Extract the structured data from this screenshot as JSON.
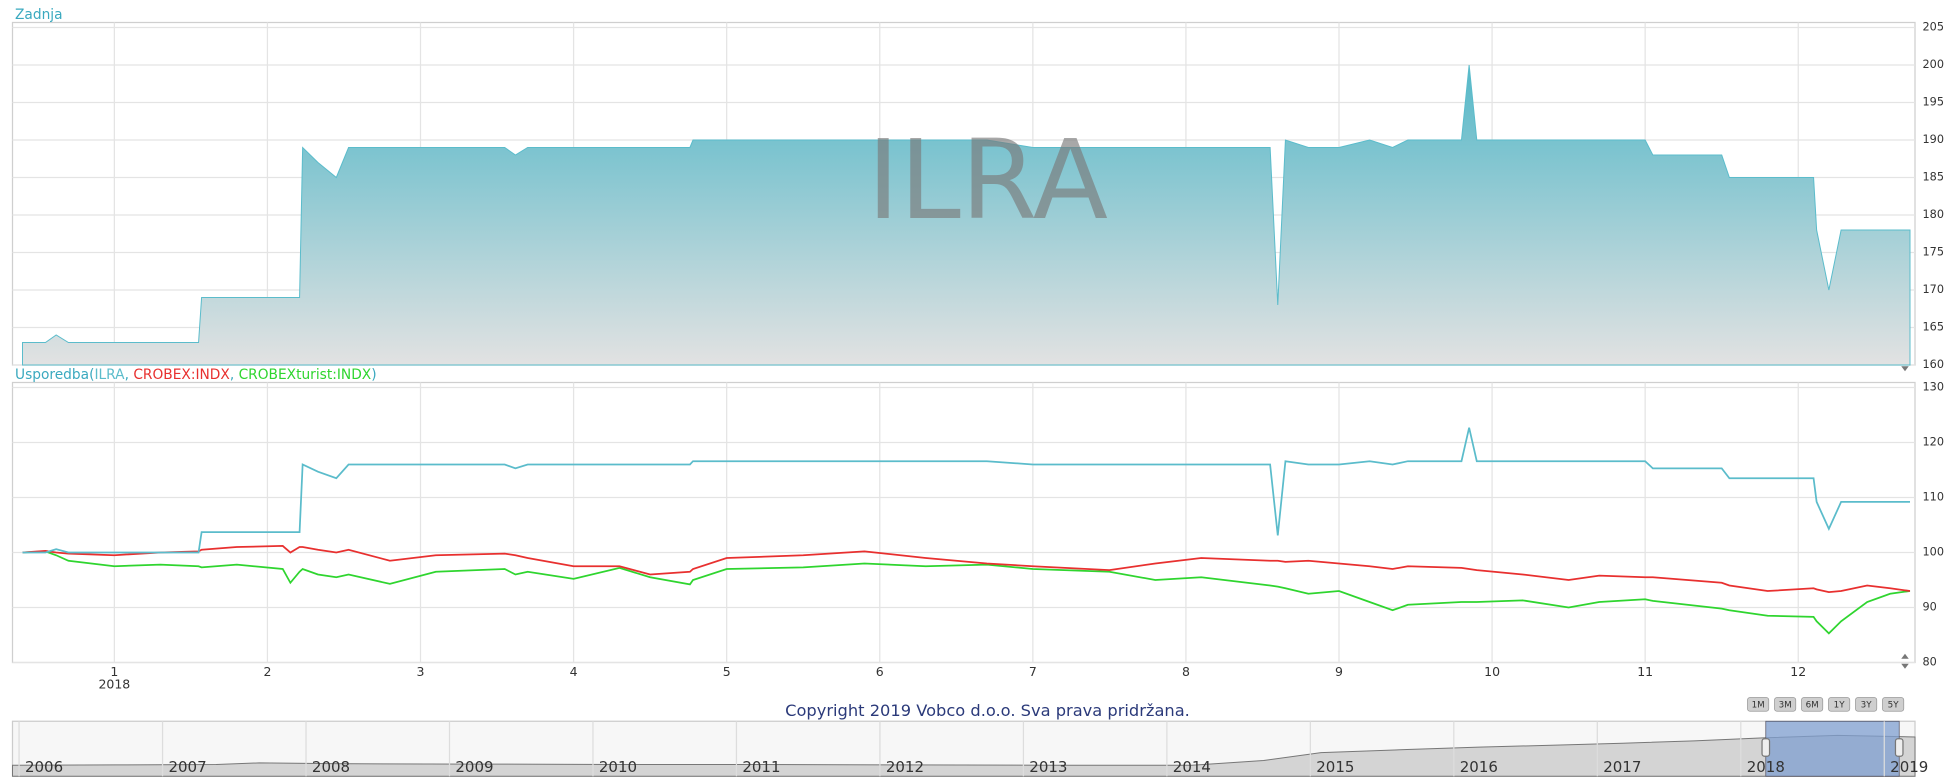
{
  "chart_data": [
    {
      "type": "area",
      "title": "Zadnja",
      "watermark": "ILRA",
      "color": "#5bbccb",
      "x": [
        0.4,
        0.55,
        0.62,
        0.7,
        1.0,
        1.3,
        1.55,
        1.57,
        1.8,
        2.1,
        2.15,
        2.21,
        2.23,
        2.33,
        2.45,
        2.53,
        2.8,
        3.1,
        3.55,
        3.62,
        3.7,
        4.0,
        4.3,
        4.5,
        4.76,
        4.78,
        5.0,
        5.5,
        5.9,
        6.3,
        6.7,
        7.0,
        7.5,
        7.8,
        8.1,
        8.55,
        8.6,
        8.65,
        8.8,
        9.0,
        9.2,
        9.35,
        9.45,
        9.8,
        9.85,
        9.9,
        10.2,
        10.5,
        10.7,
        11.0,
        11.05,
        11.5,
        11.55,
        11.8,
        12.1,
        12.12,
        12.2,
        12.28,
        12.45,
        12.6,
        12.73
      ],
      "values": [
        163,
        163,
        164,
        163,
        163,
        163,
        163,
        169,
        169,
        169,
        169,
        169,
        189,
        187,
        185,
        189,
        189,
        189,
        189,
        188,
        189,
        189,
        189,
        189,
        189,
        190,
        190,
        190,
        190,
        190,
        190,
        189,
        189,
        189,
        189,
        189,
        168,
        190,
        189,
        189,
        190,
        189,
        190,
        190,
        200,
        190,
        190,
        190,
        190,
        190,
        188,
        188,
        185,
        185,
        185,
        178,
        170,
        178,
        178,
        178,
        178
      ],
      "xlim": [
        0.4,
        12.73
      ],
      "xticks": [
        1,
        2,
        3,
        4,
        5,
        6,
        7,
        8,
        9,
        10,
        11,
        12
      ],
      "ylim": [
        160,
        205
      ],
      "yticks": [
        160,
        165,
        170,
        175,
        180,
        185,
        190,
        195,
        200,
        205
      ],
      "grid": true
    },
    {
      "type": "line",
      "title": "Usporedba",
      "x": [
        0.4,
        0.55,
        0.62,
        0.7,
        1.0,
        1.3,
        1.55,
        1.57,
        1.8,
        2.1,
        2.15,
        2.21,
        2.23,
        2.33,
        2.45,
        2.53,
        2.8,
        3.1,
        3.55,
        3.62,
        3.7,
        4.0,
        4.3,
        4.5,
        4.76,
        4.78,
        5.0,
        5.5,
        5.9,
        6.3,
        6.7,
        7.0,
        7.5,
        7.8,
        8.1,
        8.55,
        8.6,
        8.65,
        8.8,
        9.0,
        9.2,
        9.35,
        9.45,
        9.8,
        9.85,
        9.9,
        10.2,
        10.5,
        10.7,
        11.0,
        11.05,
        11.5,
        11.55,
        11.8,
        12.1,
        12.12,
        12.2,
        12.28,
        12.45,
        12.6,
        12.73
      ],
      "series": [
        {
          "name": "ILRA",
          "color": "#5bbccb",
          "values": [
            100,
            100,
            100.6,
            100,
            100,
            100,
            100,
            103.7,
            103.7,
            103.7,
            103.7,
            103.7,
            116,
            114.7,
            113.5,
            116,
            116,
            116,
            116,
            115.3,
            116,
            116,
            116,
            116,
            116,
            116.6,
            116.6,
            116.6,
            116.6,
            116.6,
            116.6,
            116,
            116,
            116,
            116,
            116,
            103.1,
            116.6,
            116,
            116,
            116.6,
            116,
            116.6,
            116.6,
            122.7,
            116.6,
            116.6,
            116.6,
            116.6,
            116.6,
            115.3,
            115.3,
            113.5,
            113.5,
            113.5,
            109.2,
            104.3,
            109.2,
            109.2,
            109.2,
            109.2
          ]
        },
        {
          "name": "CROBEX:INDX",
          "color": "#e8302f",
          "values": [
            100,
            100.3,
            100,
            99.8,
            99.5,
            100,
            100.2,
            100.5,
            101,
            101.2,
            100,
            101,
            101,
            100.5,
            100,
            100.5,
            98.5,
            99.5,
            99.8,
            99.5,
            99,
            97.5,
            97.5,
            96,
            96.5,
            97,
            99,
            99.5,
            100.2,
            99,
            98,
            97.5,
            96.8,
            98,
            99,
            98.5,
            98.5,
            98.3,
            98.5,
            98,
            97.5,
            97,
            97.5,
            97.2,
            97,
            96.8,
            96,
            95,
            95.8,
            95.5,
            95.5,
            94.5,
            94,
            93,
            93.5,
            93.3,
            92.8,
            93,
            94,
            93.5,
            93
          ]
        },
        {
          "name": "CROBEXturist:INDX",
          "color": "#2fd52f",
          "values": [
            100,
            100.2,
            99.5,
            98.5,
            97.5,
            97.8,
            97.5,
            97.3,
            97.8,
            97,
            94.5,
            96.5,
            97,
            96,
            95.5,
            96,
            94.3,
            96.5,
            97,
            96,
            96.5,
            95.2,
            97.2,
            95.5,
            94.2,
            95,
            97,
            97.3,
            98,
            97.5,
            97.8,
            97,
            96.5,
            95,
            95.5,
            94,
            93.8,
            93.5,
            92.5,
            93,
            91,
            89.5,
            90.5,
            91,
            91,
            91,
            91.3,
            90,
            91,
            91.5,
            91.2,
            89.8,
            89.5,
            88.5,
            88.3,
            87.5,
            85.3,
            87.5,
            91,
            92.5,
            93
          ]
        }
      ],
      "xlim": [
        0.4,
        12.73
      ],
      "xticks": [
        1,
        2,
        3,
        4,
        5,
        6,
        7,
        8,
        9,
        10,
        11,
        12
      ],
      "year_label": "2018",
      "ylim": [
        80,
        130
      ],
      "yticks": [
        80,
        90,
        100,
        110,
        120,
        130
      ],
      "grid": true
    }
  ],
  "copyright": "Copyright 2019 Vobco d.o.o. Sva prava pridržana.",
  "range_buttons": [
    "1M",
    "3M",
    "6M",
    "1Y",
    "3Y",
    "5Y"
  ],
  "navigator": {
    "type": "area",
    "color": "#d4d4d4",
    "x": [
      2005.78,
      2006.5,
      2007.2,
      2007.5,
      2008,
      2009,
      2010,
      2011,
      2012,
      2013,
      2014,
      2014.5,
      2014.9,
      2015.5,
      2016,
      2016.6,
      2017,
      2017.5,
      2018,
      2018.5,
      2019.04
    ],
    "values": [
      28,
      29,
      30,
      34,
      32,
      31,
      30,
      30,
      29,
      28,
      28,
      40,
      60,
      68,
      74,
      80,
      84,
      90,
      98,
      104,
      100
    ],
    "xlim": [
      2005.78,
      2019.04
    ],
    "xticks": [
      2006,
      2007,
      2008,
      2009,
      2010,
      2011,
      2012,
      2013,
      2014,
      2015,
      2016,
      2017,
      2018,
      2019
    ],
    "ylim": [
      0,
      140
    ],
    "selection": [
      2018.0,
      2018.93
    ]
  }
}
